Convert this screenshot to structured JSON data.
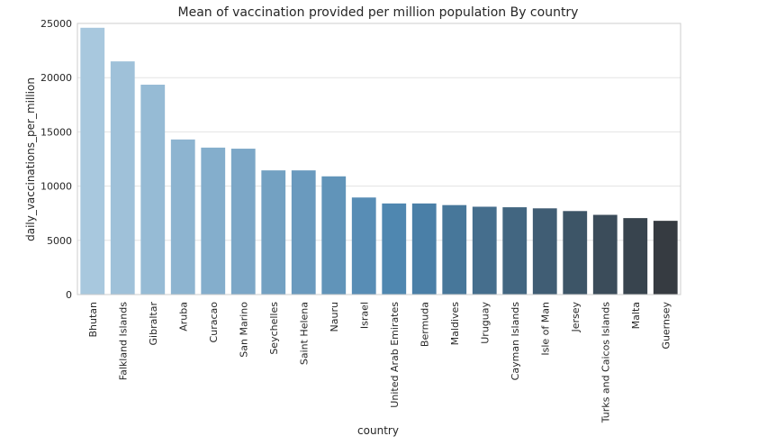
{
  "chart_data": {
    "type": "bar",
    "title": "Mean of vaccination provided per million population By country",
    "xlabel": "country",
    "ylabel": "daily_vaccinations_per_million",
    "categories": [
      "Bhutan",
      "Falkland Islands",
      "Gibraltar",
      "Aruba",
      "Curacao",
      "San Marino",
      "Seychelles",
      "Saint Helena",
      "Nauru",
      "Israel",
      "United Arab Emirates",
      "Bermuda",
      "Maldives",
      "Uruguay",
      "Cayman Islands",
      "Isle of Man",
      "Jersey",
      "Turks and Caicos Islands",
      "Malta",
      "Guernsey"
    ],
    "values": [
      24600,
      21500,
      19350,
      14300,
      13550,
      13450,
      11450,
      11450,
      10900,
      8950,
      8400,
      8400,
      8250,
      8100,
      8050,
      7950,
      7700,
      7350,
      7050,
      6800
    ],
    "ylim": [
      0,
      25000
    ],
    "yticks": [
      0,
      5000,
      10000,
      15000,
      20000,
      25000
    ],
    "grid": true,
    "colors": {
      "palette_start": "#a8c8de",
      "palette_mid": "#4b84ae",
      "palette_end": "#363b41",
      "grid": "#e3e3e3",
      "spine": "#cccccc"
    }
  }
}
